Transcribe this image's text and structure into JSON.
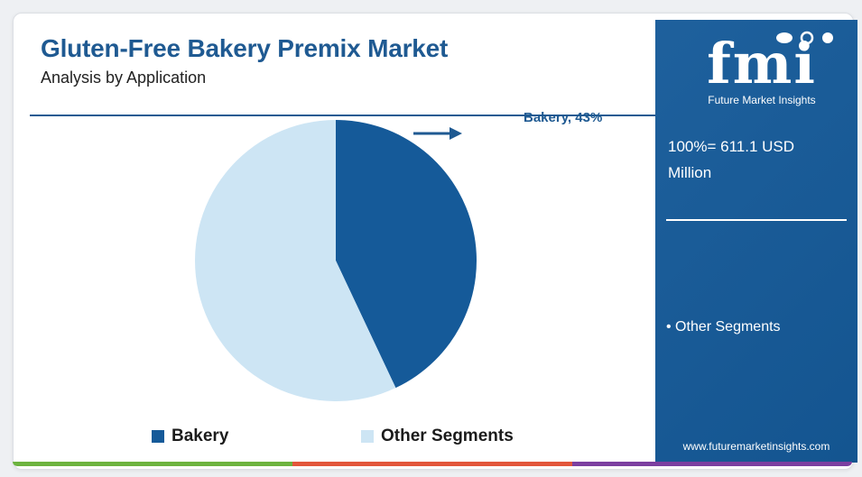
{
  "header": {
    "title": "Gluten-Free Bakery Premix Market",
    "subtitle": "Analysis by Application"
  },
  "colors": {
    "primary": "#1f5a92",
    "bakery": "#155a99",
    "other": "#cde5f4",
    "sidebar": "#155a99",
    "footer": [
      "#6cb33f",
      "#e2563b",
      "#7b3fa0"
    ]
  },
  "chart_data": {
    "type": "pie",
    "slices": [
      {
        "name": "Bakery",
        "value": 43
      },
      {
        "name": "Other Segments",
        "value": 57
      }
    ],
    "callout": "Bakery, 43%"
  },
  "legend": {
    "items": [
      {
        "label": "Bakery"
      },
      {
        "label": "Other Segments"
      }
    ]
  },
  "sidebar": {
    "logo": "fmi",
    "logo_tagline": "Future Market Insights",
    "total_line1": "100%= 611.1 USD",
    "total_line2": "Million",
    "bullet": "• Other Segments",
    "website": "www.futuremarketinsights.com"
  }
}
